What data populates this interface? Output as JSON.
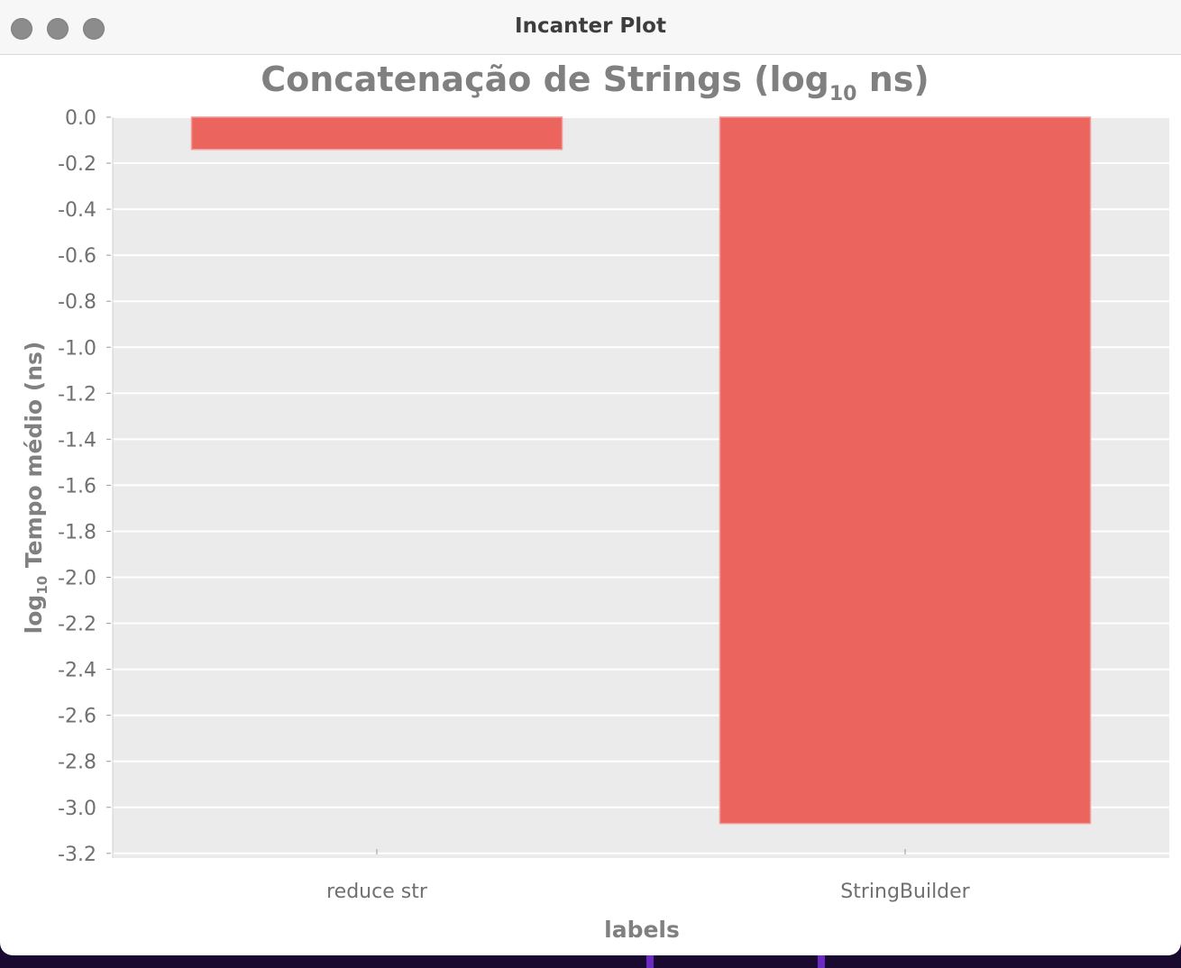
{
  "window": {
    "title": "Incanter Plot"
  },
  "chart_data": {
    "type": "bar",
    "title": "Concatenação de Strings (log",
    "title_subscript": "10",
    "title_suffix": " ns)",
    "xlabel": "labels",
    "ylabel": "Tempo médio (ns)",
    "ylabel_prefix": "log",
    "ylabel_subscript": "10",
    "categories": [
      "reduce str",
      "StringBuilder"
    ],
    "values": [
      -0.14,
      -3.07
    ],
    "ylim": [
      -3.25,
      0.0
    ],
    "yticks": [
      0.0,
      -0.2,
      -0.4,
      -0.6,
      -0.8,
      -1.0,
      -1.2,
      -1.4,
      -1.6,
      -1.8,
      -2.0,
      -2.2,
      -2.4,
      -2.6,
      -2.8,
      -3.0,
      -3.2
    ],
    "ytick_labels": [
      "0.0",
      "-0.2",
      "-0.4",
      "-0.6",
      "-0.8",
      "-1.0",
      "-1.2",
      "-1.4",
      "-1.6",
      "-1.8",
      "-2.0",
      "-2.2",
      "-2.4",
      "-2.6",
      "-2.8",
      "-3.0",
      "-3.2"
    ],
    "grid": true,
    "legend": "none",
    "colors": {
      "bar": "#eb645e",
      "bar_edge": "#f19a96",
      "plot_background": "#ebebeb",
      "grid": "#ffffff"
    }
  }
}
